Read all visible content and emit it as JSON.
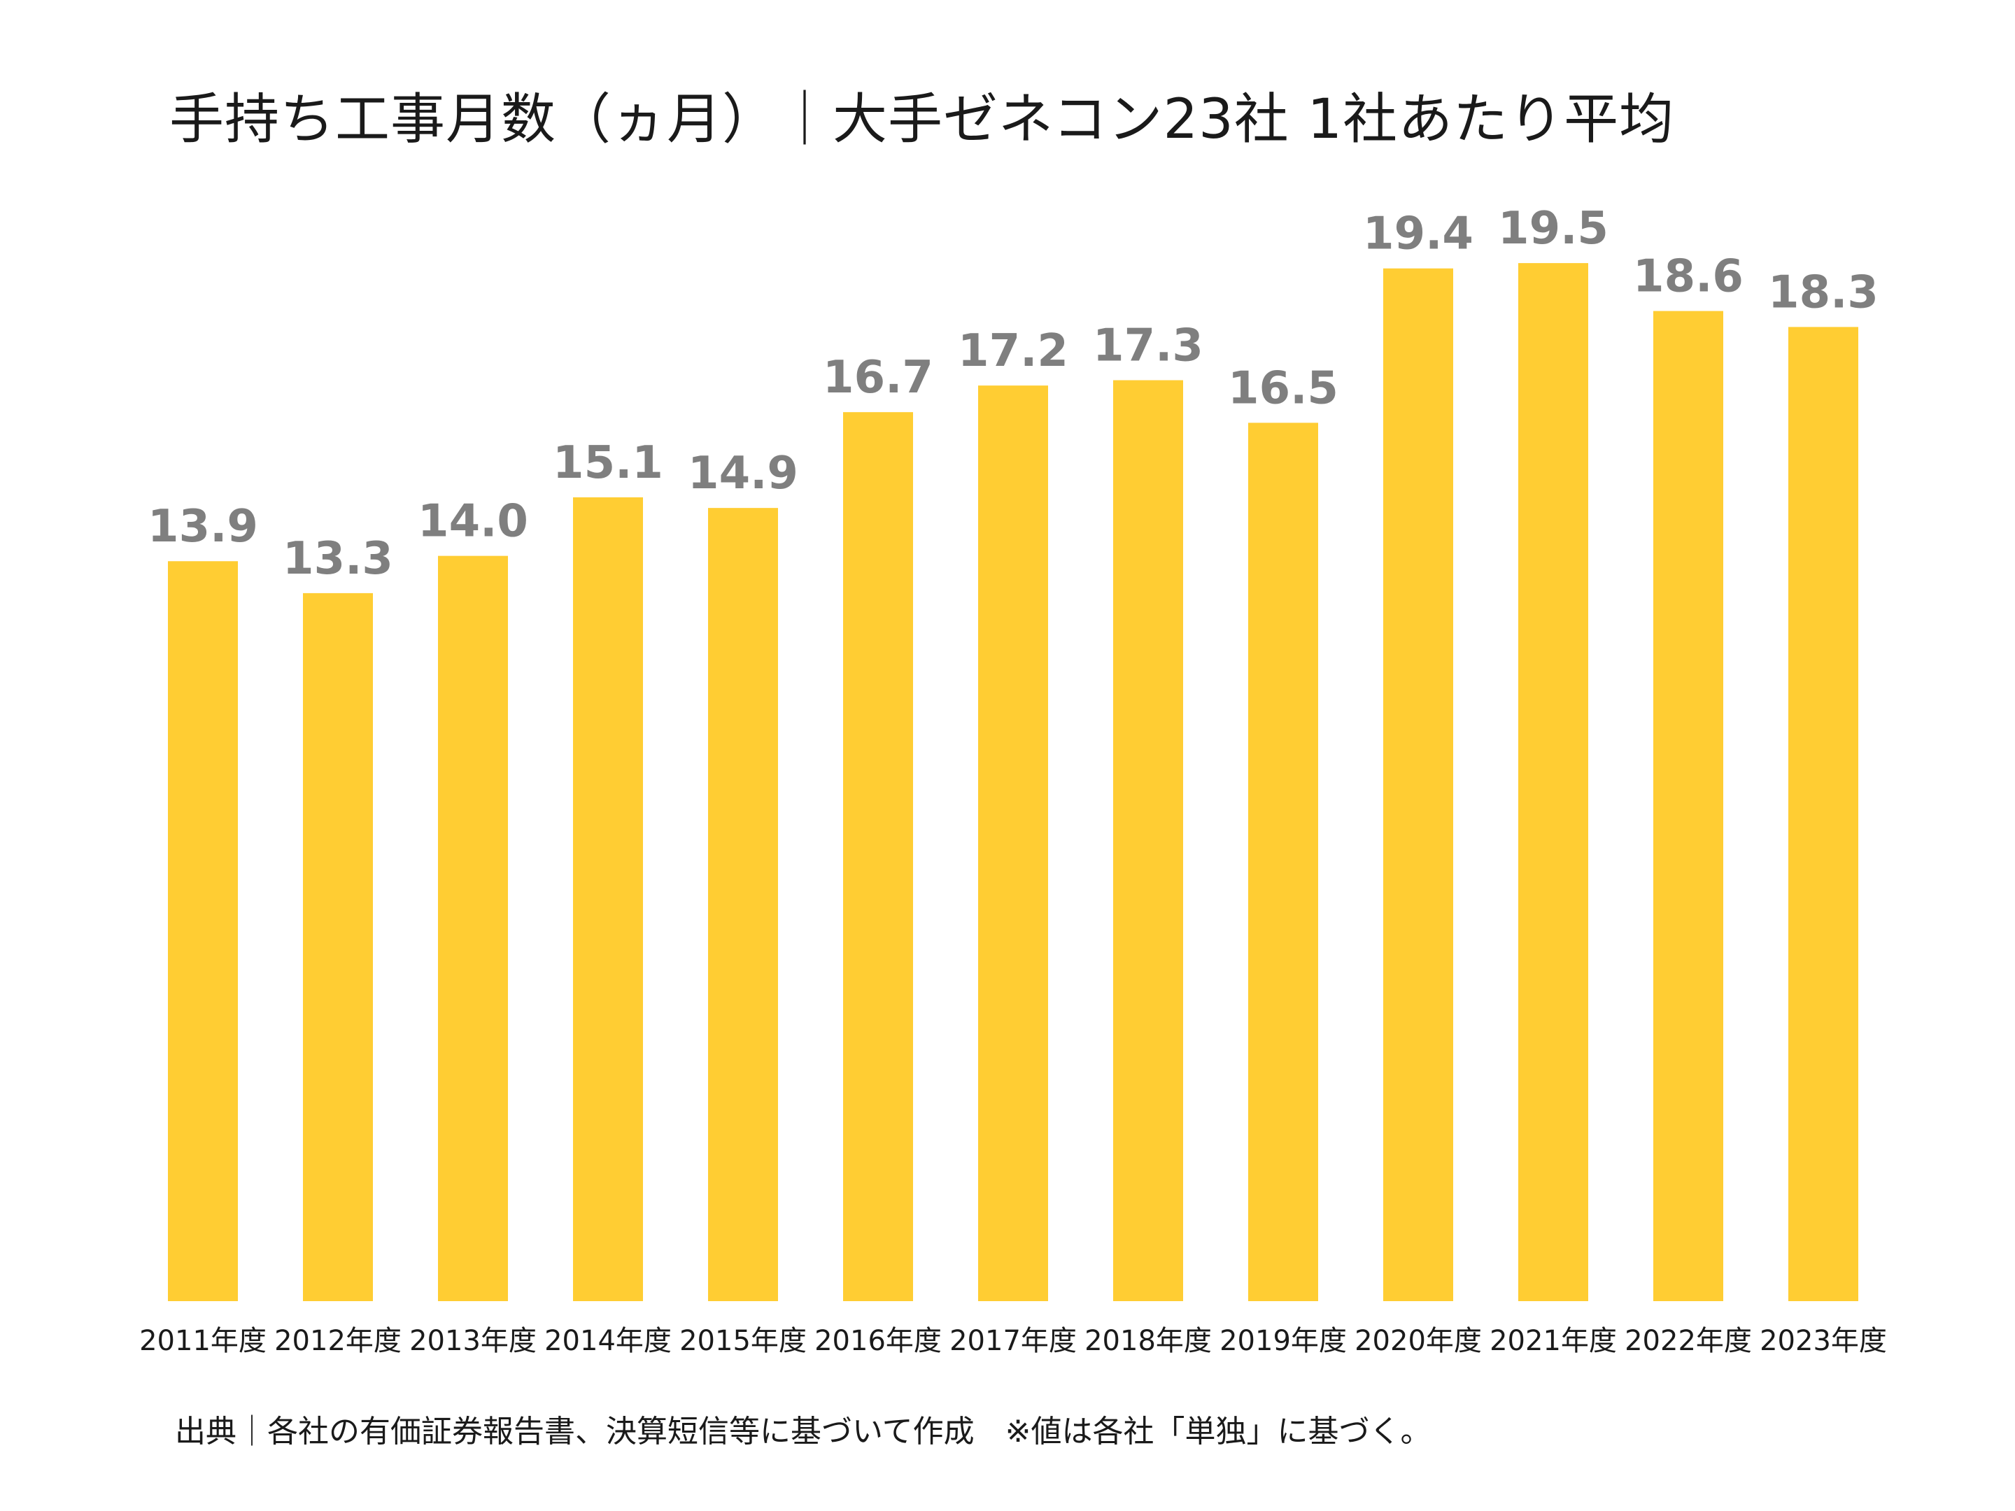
{
  "chart_data": {
    "type": "bar",
    "title": "手持ち工事月数（ヵ月）｜大手ゼネコン23社 1社あたり平均",
    "categories": [
      "2011年度",
      "2012年度",
      "2013年度",
      "2014年度",
      "2015年度",
      "2016年度",
      "2017年度",
      "2018年度",
      "2019年度",
      "2020年度",
      "2021年度",
      "2022年度",
      "2023年度"
    ],
    "values": [
      13.9,
      13.3,
      14.0,
      15.1,
      14.9,
      16.7,
      17.2,
      17.3,
      16.5,
      19.4,
      19.5,
      18.6,
      18.3
    ],
    "value_labels": [
      "13.9",
      "13.3",
      "14.0",
      "15.1",
      "14.9",
      "16.7",
      "17.2",
      "17.3",
      "16.5",
      "19.4",
      "19.5",
      "18.6",
      "18.3"
    ],
    "xlabel": "",
    "ylabel": "",
    "ylim": [
      0,
      20.5
    ],
    "grid": false,
    "legend": "none",
    "colors": {
      "bar": "#FFCD33",
      "value_label": "#7F7F7F",
      "text": "#1A1A1A"
    },
    "footnote": "出典｜各社の有価証券報告書、決算短信等に基づいて作成　※値は各社「単独」に基づく。"
  }
}
